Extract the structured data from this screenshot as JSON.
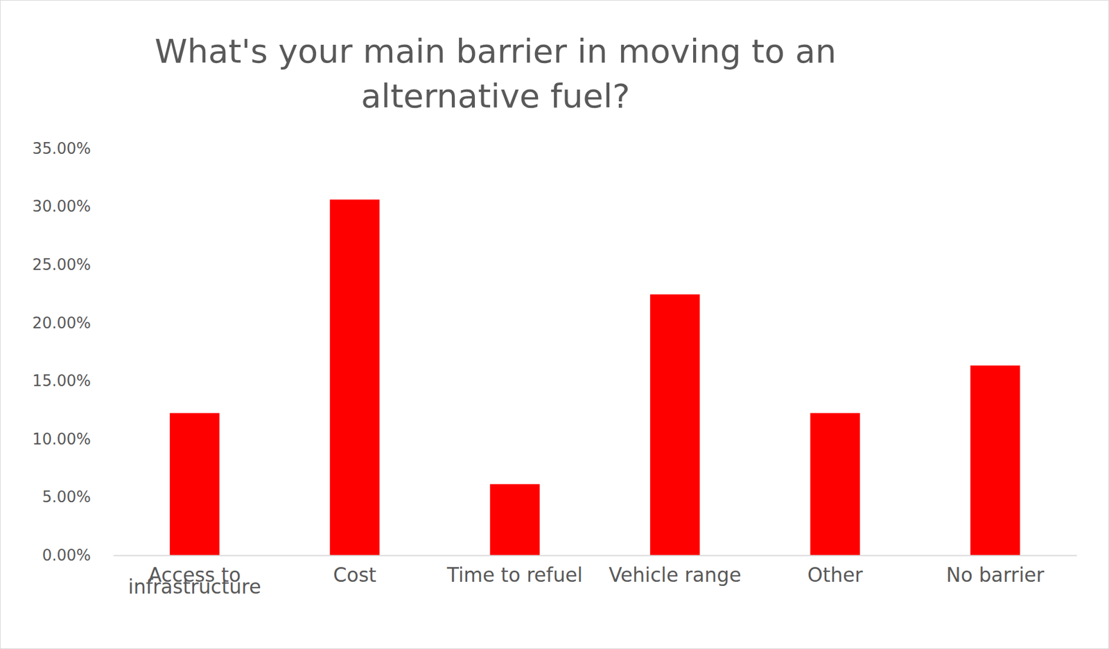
{
  "chart_data": {
    "type": "bar",
    "title": "What's your main barrier in moving to an alternative fuel?",
    "categories": [
      "Access to infrastructure",
      "Cost",
      "Time to refuel",
      "Vehicle range",
      "Other",
      "No barrier"
    ],
    "values": [
      12.24,
      30.61,
      6.12,
      22.45,
      12.24,
      16.33
    ],
    "color": "#ff0000",
    "ylim": [
      0,
      35
    ],
    "yticks": [
      {
        "value": 0,
        "label": "0.00%"
      },
      {
        "value": 5,
        "label": "5.00%"
      },
      {
        "value": 10,
        "label": "10.00%"
      },
      {
        "value": 15,
        "label": "15.00%"
      },
      {
        "value": 20,
        "label": "20.00%"
      },
      {
        "value": 25,
        "label": "25.00%"
      },
      {
        "value": 30,
        "label": "30.00%"
      },
      {
        "value": 35,
        "label": "35.00%"
      }
    ],
    "grid": false
  }
}
